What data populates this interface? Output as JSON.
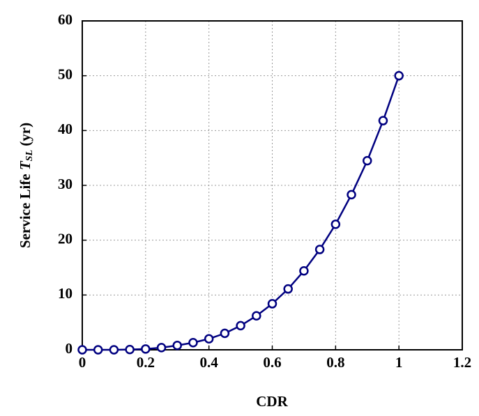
{
  "chart_data": {
    "type": "line",
    "xlabel": "CDR",
    "ylabel": {
      "text": "Service Life",
      "symbol": "T",
      "subscript": "SL",
      "unit": "(yr)"
    },
    "x": [
      0,
      0.05,
      0.1,
      0.15,
      0.2,
      0.25,
      0.3,
      0.35,
      0.4,
      0.45,
      0.5,
      0.55,
      0.6,
      0.65,
      0.7,
      0.75,
      0.8,
      0.85,
      0.9,
      0.95,
      1
    ],
    "values": [
      0,
      0,
      0,
      0.05,
      0.15,
      0.4,
      0.8,
      1.3,
      2.0,
      3.0,
      4.4,
      6.2,
      8.4,
      11.1,
      14.4,
      18.3,
      22.9,
      28.3,
      34.5,
      41.8,
      50
    ],
    "color": "#000080",
    "xlim": [
      0,
      1.2
    ],
    "xticks": [
      0,
      0.2,
      0.4,
      0.6,
      0.8,
      1,
      1.2
    ],
    "ylim": [
      0,
      60
    ],
    "yticks": [
      0,
      10,
      20,
      30,
      40,
      50,
      60
    ],
    "grid": true
  }
}
